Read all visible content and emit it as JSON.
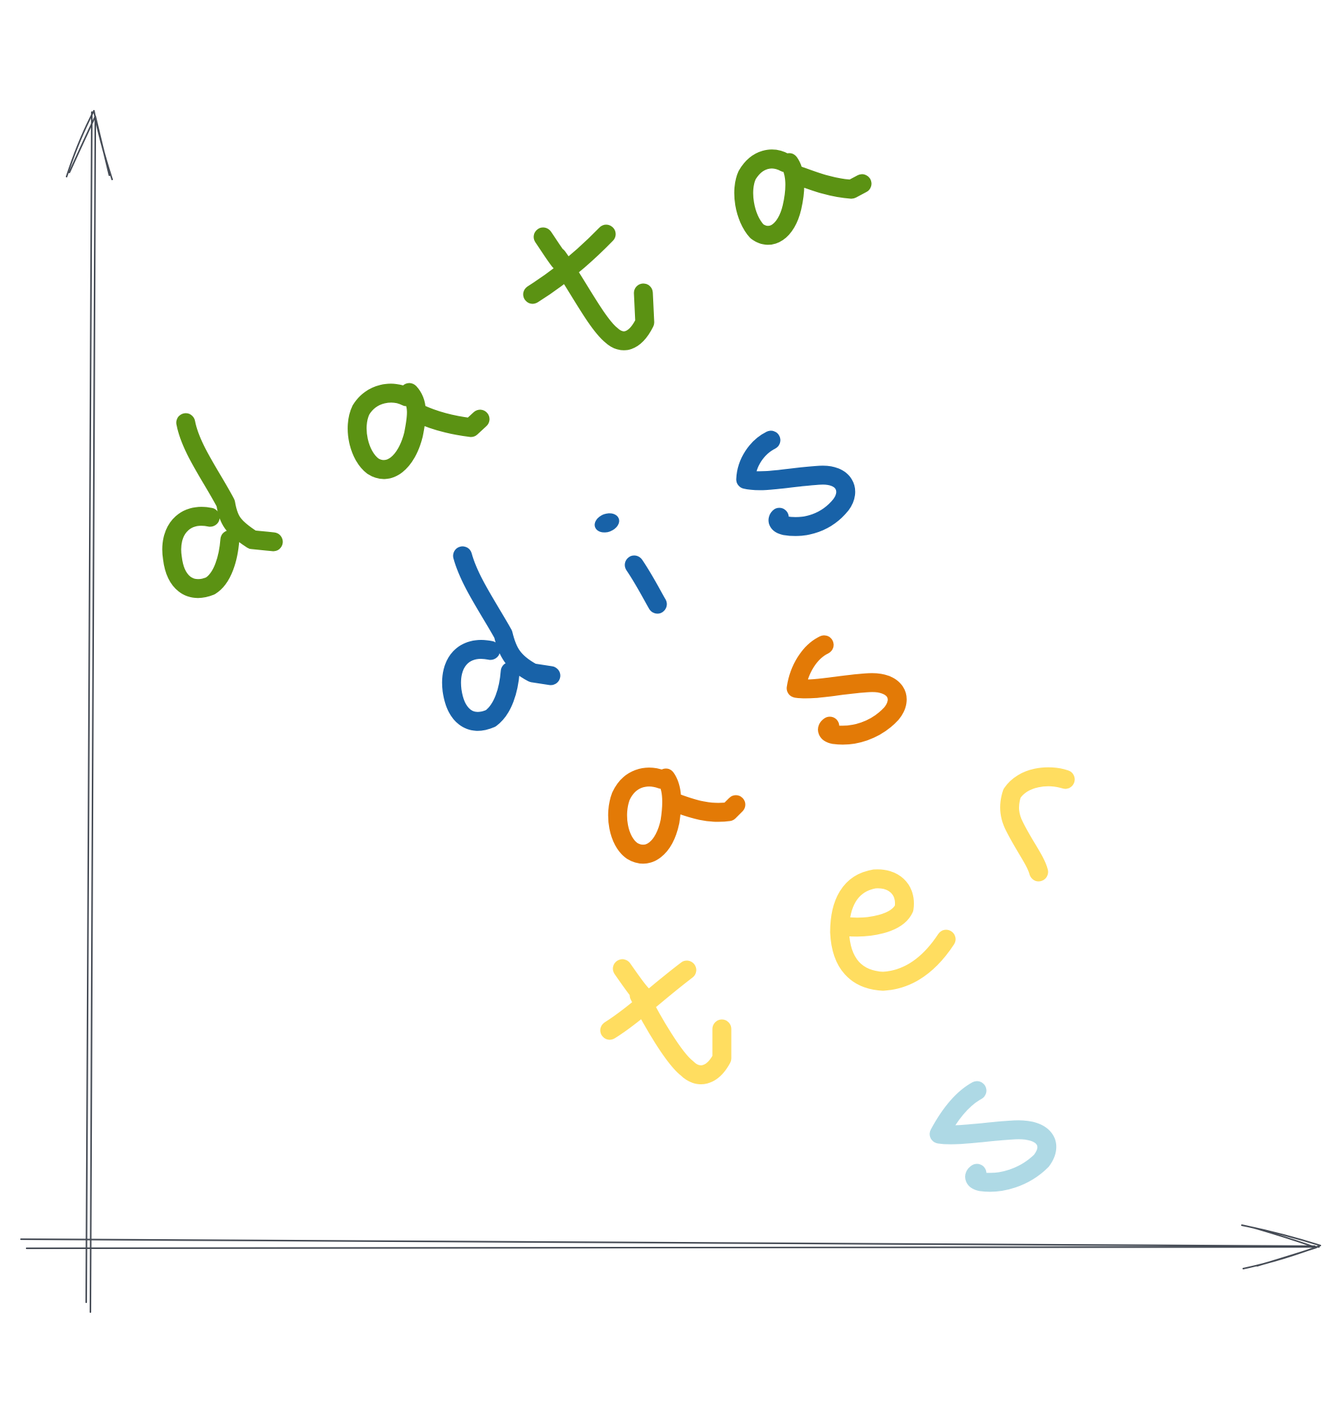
{
  "colors": {
    "background": "#ffffff",
    "axis": "#454b55",
    "green": "#5b9213",
    "blue": "#1862a8",
    "orange": "#e37a06",
    "yellow": "#ffdd60",
    "light_blue": "#aed9e5"
  },
  "axes": {
    "x_axis": "arrow-right",
    "y_axis": "arrow-up",
    "style": "hand-drawn"
  },
  "letter_groups": [
    {
      "name": "green",
      "color": "#5b9213",
      "letters": [
        "d",
        "a",
        "t",
        "a"
      ]
    },
    {
      "name": "blue",
      "color": "#1862a8",
      "letters": [
        "d",
        "i",
        "s"
      ]
    },
    {
      "name": "orange",
      "color": "#e37a06",
      "letters": [
        "s",
        "a"
      ]
    },
    {
      "name": "yellow",
      "color": "#ffdd60",
      "letters": [
        "r",
        "e",
        "t"
      ]
    },
    {
      "name": "light-blue",
      "color": "#aed9e5",
      "letters": [
        "s"
      ]
    }
  ]
}
